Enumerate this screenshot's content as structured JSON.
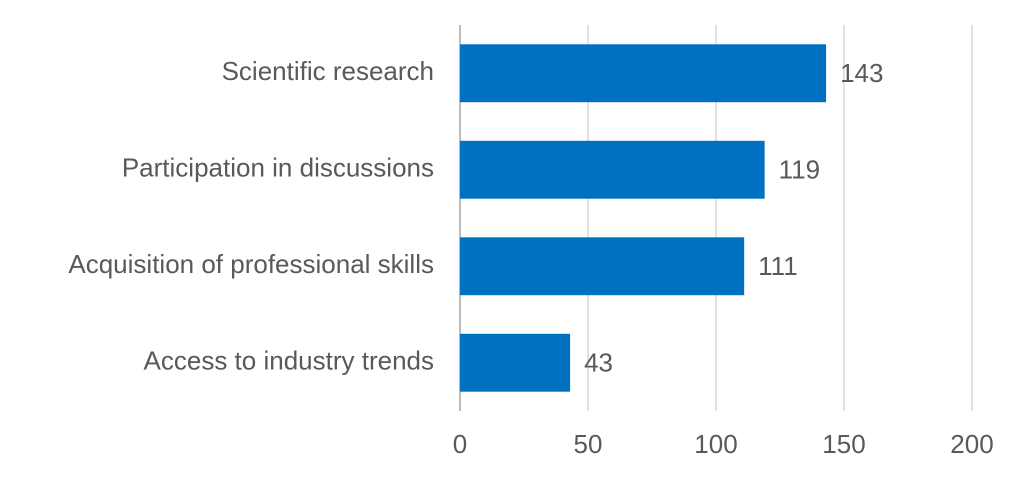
{
  "chart_data": {
    "type": "bar",
    "orientation": "horizontal",
    "categories": [
      "Scientific research",
      "Participation in discussions",
      "Acquisition of professional skills",
      "Access to industry trends"
    ],
    "values": [
      143,
      119,
      111,
      43
    ],
    "color": "#0070c0",
    "xlim": [
      0,
      200
    ],
    "xticks": [
      0,
      50,
      100,
      150,
      200
    ],
    "grid": true
  }
}
